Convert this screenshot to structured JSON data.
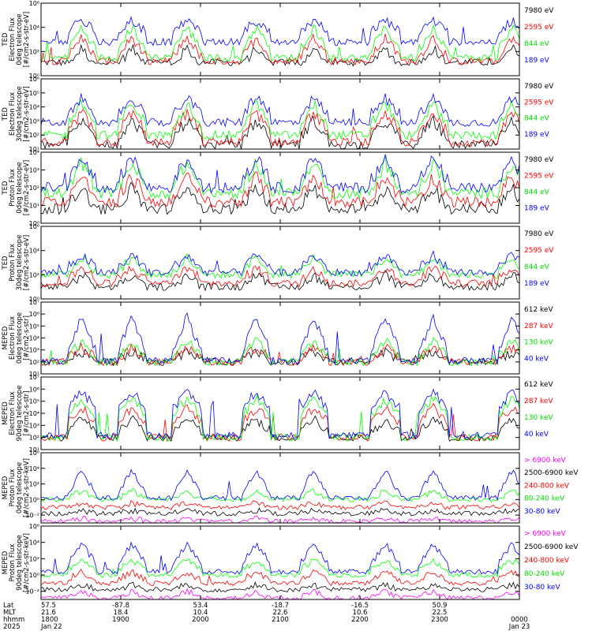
{
  "chart_data": [
    {
      "type": "line",
      "ylabel": [
        "TED",
        "Electron Flux",
        "0deg telescope",
        "[#/cm2-s-str-eV]"
      ],
      "ylog": true,
      "ylim_exp": [
        0,
        6
      ],
      "yticks": [
        {
          "e": 0,
          "t": "10⁰"
        },
        {
          "e": 2,
          "t": "10²"
        },
        {
          "e": 4,
          "t": "10⁴"
        },
        {
          "e": 6,
          "t": "10⁶"
        }
      ],
      "series": [
        {
          "name": "7980 eV",
          "color": "#000000",
          "baseline": 1.1,
          "level": [
            0.2,
            0.8,
            2.3,
            0.3
          ]
        },
        {
          "name": "2595 eV",
          "color": "#ff0000",
          "baseline": 1.2,
          "level": [
            0.6,
            1.5,
            3.2,
            0.8
          ]
        },
        {
          "name": "844 eV",
          "color": "#00ff00",
          "baseline": 1.5,
          "level": [
            1.0,
            2.2,
            4.0,
            1.4
          ]
        },
        {
          "name": "189 eV",
          "color": "#0000ff",
          "baseline": 2.8,
          "level": [
            2.6,
            3.6,
            4.6,
            2.8
          ]
        }
      ]
    },
    {
      "type": "line",
      "ylabel": [
        "TED",
        "Electron Flux",
        "30deg telescope",
        "[#/cm2-s-str-eV]"
      ],
      "ylog": true,
      "ylim_exp": [
        1,
        6
      ],
      "yticks": [
        {
          "e": 1,
          "t": "10¹"
        },
        {
          "e": 2,
          "t": "10²"
        },
        {
          "e": 3,
          "t": "10³"
        },
        {
          "e": 4,
          "t": "10⁴"
        },
        {
          "e": 5,
          "t": "10⁵"
        },
        {
          "e": 6,
          "t": "10⁶"
        }
      ],
      "series": [
        {
          "name": "7980 eV",
          "color": "#000000",
          "baseline": 1.3,
          "level": [
            1.2,
            1.8,
            3.0,
            1.2
          ]
        },
        {
          "name": "2595 eV",
          "color": "#ff0000",
          "baseline": 1.5,
          "level": [
            1.4,
            2.2,
            3.6,
            1.6
          ]
        },
        {
          "name": "844 eV",
          "color": "#00ff00",
          "baseline": 2.0,
          "level": [
            1.6,
            2.8,
            4.2,
            2.0
          ]
        },
        {
          "name": "189 eV",
          "color": "#0000ff",
          "baseline": 2.9,
          "level": [
            2.8,
            3.5,
            4.6,
            3.0
          ]
        }
      ]
    },
    {
      "type": "line",
      "ylabel": [
        "TED",
        "Proton Flux",
        "0deg telescope",
        "[#/cm2-s-str-eV]"
      ],
      "ylog": true,
      "ylim_exp": [
        0,
        4
      ],
      "yticks": [
        {
          "e": 0,
          "t": "10⁰"
        },
        {
          "e": 1,
          "t": "10¹"
        },
        {
          "e": 2,
          "t": "10²"
        },
        {
          "e": 3,
          "t": "10³"
        },
        {
          "e": 4,
          "t": "10⁴"
        }
      ],
      "series": [
        {
          "name": "7980 eV",
          "color": "#000000",
          "baseline": 0.8,
          "level": [
            0.4,
            0.9,
            2.0,
            0.6
          ]
        },
        {
          "name": "2595 eV",
          "color": "#ff0000",
          "baseline": 1.2,
          "level": [
            0.8,
            1.5,
            2.6,
            1.0
          ]
        },
        {
          "name": "844 eV",
          "color": "#00ff00",
          "baseline": 1.7,
          "level": [
            1.2,
            2.0,
            3.4,
            1.4
          ]
        },
        {
          "name": "189 eV",
          "color": "#0000ff",
          "baseline": 2.0,
          "level": [
            1.6,
            2.4,
            3.6,
            1.8
          ]
        }
      ]
    },
    {
      "type": "line",
      "ylabel": [
        "TED",
        "Proton Flux",
        "30deg telescope",
        "[#/cm2-s-str-eV]"
      ],
      "ylog": true,
      "ylim_exp": [
        0,
        6
      ],
      "yticks": [
        {
          "e": 0,
          "t": "10⁰"
        },
        {
          "e": 2,
          "t": "10²"
        },
        {
          "e": 4,
          "t": "10⁴"
        },
        {
          "e": 6,
          "t": "10⁶"
        }
      ],
      "series": [
        {
          "name": "7980 eV",
          "color": "#000000",
          "baseline": 1.0,
          "level": [
            0.4,
            1.0,
            2.0,
            0.8
          ]
        },
        {
          "name": "2595 eV",
          "color": "#ff0000",
          "baseline": 1.3,
          "level": [
            0.8,
            1.6,
            2.6,
            1.2
          ]
        },
        {
          "name": "844 eV",
          "color": "#00ff00",
          "baseline": 2.0,
          "level": [
            1.8,
            2.2,
            3.4,
            1.8
          ]
        },
        {
          "name": "189 eV",
          "color": "#0000ff",
          "baseline": 2.2,
          "level": [
            2.0,
            2.6,
            3.6,
            2.0
          ]
        }
      ]
    },
    {
      "type": "line",
      "ylabel": [
        "MEPED",
        "Electron Flux",
        "0deg telescope",
        "[#/cm2-s-str]"
      ],
      "ylog": true,
      "ylim_exp": [
        1,
        7
      ],
      "yticks": [
        {
          "e": 1,
          "t": "10¹"
        },
        {
          "e": 2,
          "t": "10²"
        },
        {
          "e": 3,
          "t": "10³"
        },
        {
          "e": 4,
          "t": "10⁴"
        },
        {
          "e": 5,
          "t": "10⁵"
        },
        {
          "e": 6,
          "t": "10⁶"
        },
        {
          "e": 7,
          "t": "10⁷"
        }
      ],
      "series": [
        {
          "name": "612 keV",
          "color": "#000000",
          "baseline": 2.0,
          "level": [
            2.0,
            2.2,
            2.8,
            2.0
          ]
        },
        {
          "name": "287 keV",
          "color": "#ff0000",
          "baseline": 2.0,
          "level": [
            2.0,
            2.3,
            3.2,
            2.0
          ]
        },
        {
          "name": "130 keV",
          "color": "#00ff00",
          "baseline": 2.0,
          "level": [
            2.0,
            2.4,
            3.8,
            2.0
          ]
        },
        {
          "name": "40 keV",
          "color": "#0000ff",
          "baseline": 2.1,
          "level": [
            2.0,
            2.8,
            5.8,
            2.1
          ]
        }
      ]
    },
    {
      "type": "line",
      "ylabel": [
        "MEPED",
        "Electron Flux",
        "90deg telescope",
        "[#/cm2-s-str]"
      ],
      "ylog": true,
      "ylim_exp": [
        1,
        7
      ],
      "yticks": [
        {
          "e": 1,
          "t": "10¹"
        },
        {
          "e": 2,
          "t": "10²"
        },
        {
          "e": 3,
          "t": "10³"
        },
        {
          "e": 4,
          "t": "10⁴"
        },
        {
          "e": 5,
          "t": "10⁵"
        },
        {
          "e": 6,
          "t": "10⁶"
        },
        {
          "e": 7,
          "t": "10⁷"
        }
      ],
      "series": [
        {
          "name": "612 keV",
          "color": "#000000",
          "baseline": 2.0,
          "level": [
            2.0,
            2.5,
            3.5,
            2.0
          ]
        },
        {
          "name": "287 keV",
          "color": "#ff0000",
          "baseline": 2.0,
          "level": [
            2.0,
            3.2,
            4.5,
            2.0
          ]
        },
        {
          "name": "130 keV",
          "color": "#00ff00",
          "baseline": 2.0,
          "level": [
            2.0,
            3.8,
            5.2,
            2.0
          ]
        },
        {
          "name": "40 keV",
          "color": "#0000ff",
          "baseline": 2.2,
          "level": [
            2.2,
            4.4,
            5.8,
            2.4
          ]
        }
      ]
    },
    {
      "type": "line",
      "ylabel": [
        "MEPED",
        "Proton Flux",
        "0deg telescope",
        "[#/cm2-s-str-keV]"
      ],
      "ylog": true,
      "ylim_exp": [
        -3,
        6
      ],
      "yticks": [
        {
          "e": -2,
          "t": "10⁻²"
        },
        {
          "e": 0,
          "t": "10⁰"
        },
        {
          "e": 2,
          "t": "10²"
        },
        {
          "e": 4,
          "t": "10⁴"
        },
        {
          "e": 6,
          "t": "10⁶"
        }
      ],
      "series": [
        {
          "name": "> 6900 keV",
          "color": "#ff00ff",
          "baseline": -2.8,
          "level": [
            -2.8,
            -2.8,
            -2.4,
            -2.8
          ]
        },
        {
          "name": "2500-6900 keV",
          "color": "#000000",
          "baseline": -1.8,
          "level": [
            -1.8,
            -1.8,
            -1.4,
            -1.8
          ]
        },
        {
          "name": "240-800 keV",
          "color": "#ff0000",
          "baseline": -1.0,
          "level": [
            -1.0,
            -1.0,
            -0.4,
            -1.0
          ]
        },
        {
          "name": "80-240 keV",
          "color": "#00ff00",
          "baseline": 0.0,
          "level": [
            0.0,
            0.0,
            1.2,
            0.0
          ]
        },
        {
          "name": "30-80 keV",
          "color": "#0000ff",
          "baseline": 0.2,
          "level": [
            0.2,
            0.6,
            3.8,
            0.4
          ]
        }
      ]
    },
    {
      "type": "line",
      "ylabel": [
        "MEPED",
        "Proton Flux",
        "90deg telescope",
        "[#/cm2-s-str-keV]"
      ],
      "ylog": true,
      "ylim_exp": [
        -3,
        6
      ],
      "yticks": [
        {
          "e": -2,
          "t": "10⁻²"
        },
        {
          "e": 0,
          "t": "10⁰"
        },
        {
          "e": 2,
          "t": "10²"
        },
        {
          "e": 4,
          "t": "10⁴"
        },
        {
          "e": 6,
          "t": "10⁶"
        }
      ],
      "series": [
        {
          "name": "> 6900 keV",
          "color": "#ff00ff",
          "baseline": -2.8,
          "level": [
            -2.8,
            -2.8,
            -2.0,
            -2.8
          ]
        },
        {
          "name": "2500-6900 keV",
          "color": "#000000",
          "baseline": -1.8,
          "level": [
            -1.8,
            -1.8,
            -1.2,
            -1.8
          ]
        },
        {
          "name": "240-800 keV",
          "color": "#ff0000",
          "baseline": -1.0,
          "level": [
            -1.0,
            -0.6,
            0.4,
            -1.0
          ]
        },
        {
          "name": "80-240 keV",
          "color": "#00ff00",
          "baseline": 0.0,
          "level": [
            0.0,
            0.6,
            1.8,
            0.2
          ]
        },
        {
          "name": "30-80 keV",
          "color": "#0000ff",
          "baseline": 0.4,
          "level": [
            0.4,
            1.4,
            3.8,
            1.0
          ]
        }
      ]
    }
  ],
  "xaxis": {
    "row_labels": [
      "Lat",
      "MLT",
      "hhmm",
      "2025"
    ],
    "ticks": [
      {
        "values": [
          "57.5",
          "21.6",
          "1800",
          "Jan 22"
        ]
      },
      {
        "values": [
          "-87.8",
          "18.4",
          "1900",
          ""
        ]
      },
      {
        "values": [
          "53.4",
          "10.4",
          "2000",
          ""
        ]
      },
      {
        "values": [
          "-18.7",
          "22.6",
          "2100",
          ""
        ]
      },
      {
        "values": [
          "-16.5",
          "10.6",
          "2200",
          ""
        ]
      },
      {
        "values": [
          "50.9",
          "22.5",
          "2300",
          ""
        ]
      },
      {
        "values": [
          "",
          "",
          "0000",
          "Jan 23"
        ]
      }
    ]
  }
}
